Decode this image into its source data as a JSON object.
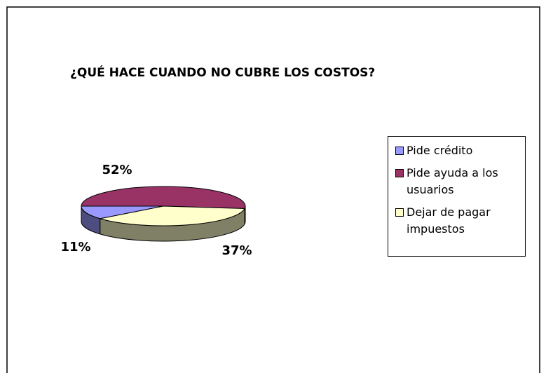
{
  "chart_data": {
    "type": "pie3d",
    "title": "¿QUÉ HACE CUANDO NO CUBRE LOS COSTOS?",
    "categories": [
      "Pide crédito",
      "Pide ayuda a los usuarios",
      "Dejar de pagar impuestos"
    ],
    "values": [
      11,
      52,
      37
    ],
    "value_labels": [
      "11%",
      "52%",
      "37%"
    ],
    "colors": [
      "#9999ff",
      "#993366",
      "#ffffcc"
    ],
    "legend": "right"
  }
}
